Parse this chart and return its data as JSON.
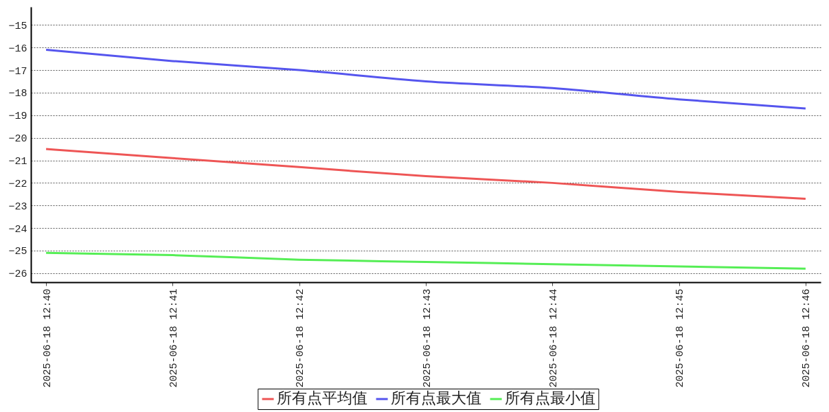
{
  "chart_data": {
    "type": "line",
    "categories": [
      "2025-06-18 12:40",
      "2025-06-18 12:41",
      "2025-06-18 12:42",
      "2025-06-18 12:43",
      "2025-06-18 12:44",
      "2025-06-18 12:45",
      "2025-06-18 12:46"
    ],
    "series": [
      {
        "name": "所有点平均值",
        "color": "#ee5555",
        "values": [
          -20.5,
          -20.9,
          -21.3,
          -21.7,
          -22.0,
          -22.4,
          -22.7
        ]
      },
      {
        "name": "所有点最大值",
        "color": "#5555ee",
        "values": [
          -16.1,
          -16.6,
          -17.0,
          -17.5,
          -17.8,
          -18.3,
          -18.7
        ]
      },
      {
        "name": "所有点最小值",
        "color": "#55ee55",
        "values": [
          -25.1,
          -25.2,
          -25.4,
          -25.5,
          -25.6,
          -25.7,
          -25.8
        ]
      }
    ],
    "ylim": [
      -26.4,
      -14.2
    ],
    "yticks": [
      -15,
      -16,
      -17,
      -18,
      -19,
      -20,
      -21,
      -22,
      -23,
      -24,
      -25,
      -26
    ],
    "grid": "y",
    "legend": "bottom",
    "line_style": "solid"
  }
}
